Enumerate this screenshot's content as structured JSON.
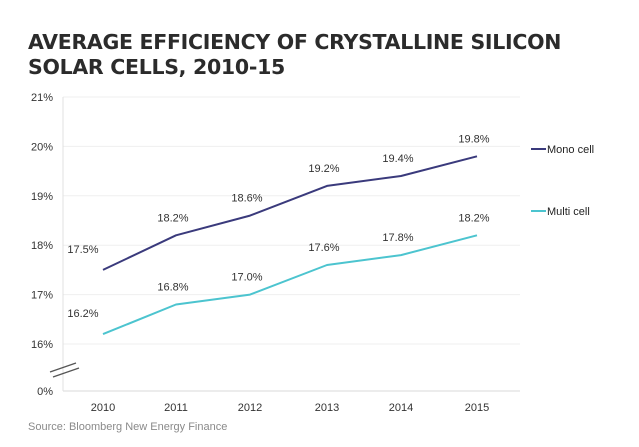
{
  "chart_data": {
    "type": "line",
    "title": "AVERAGE EFFICIENCY OF CRYSTALLINE SILICON SOLAR CELLS, 2010-15",
    "title_lines": [
      "AVERAGE EFFICIENCY OF CRYSTALLINE SILICON",
      "SOLAR CELLS, 2010-15"
    ],
    "xlabel": "",
    "ylabel": "",
    "categories": [
      "2010",
      "2011",
      "2012",
      "2013",
      "2014",
      "2015"
    ],
    "yticks": [
      "21%",
      "20%",
      "19%",
      "18%",
      "17%",
      "16%",
      "0%"
    ],
    "ylim": [
      0,
      21
    ],
    "axis_break": "between 0% and 16%",
    "grid": true,
    "legend_position": "right",
    "series": [
      {
        "name": "Mono cell",
        "color": "#3a3a7c",
        "values": [
          17.5,
          18.2,
          18.6,
          19.2,
          19.4,
          19.8
        ],
        "labels": [
          "17.5%",
          "18.2%",
          "18.6%",
          "19.2%",
          "19.4%",
          "19.8%"
        ]
      },
      {
        "name": "Multi cell",
        "color": "#4cc4cf",
        "values": [
          16.2,
          16.8,
          17.0,
          17.6,
          17.8,
          18.2
        ],
        "labels": [
          "16.2%",
          "16.8%",
          "17.0%",
          "17.6%",
          "17.8%",
          "18.2%"
        ]
      }
    ],
    "source": "Source:  Bloomberg New Energy Finance"
  }
}
